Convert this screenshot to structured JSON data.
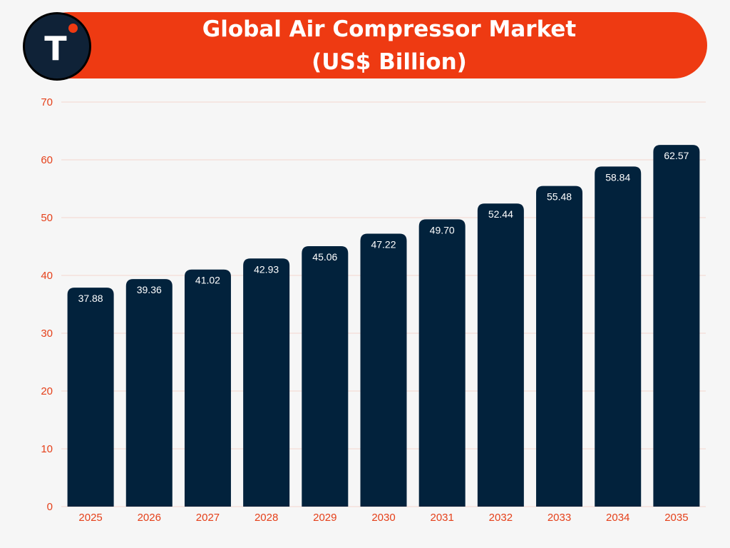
{
  "header": {
    "title_line1": "Global Air Compressor Market",
    "title_line2": "(US$ Billion)",
    "logo_letter": "T"
  },
  "colors": {
    "accent": "#ee3a12",
    "bar": "#02223c",
    "axis_text": "#e5401a",
    "grid": "#f4d6cf"
  },
  "chart_data": {
    "type": "bar",
    "title": "Global Air Compressor Market (US$ Billion)",
    "categories": [
      "2025",
      "2026",
      "2027",
      "2028",
      "2029",
      "2030",
      "2031",
      "2032",
      "2033",
      "2034",
      "2035"
    ],
    "values": [
      37.88,
      39.36,
      41.02,
      42.93,
      45.06,
      47.22,
      49.7,
      52.44,
      55.48,
      58.84,
      62.57
    ],
    "value_labels": [
      "37.88",
      "39.36",
      "41.02",
      "42.93",
      "45.06",
      "47.22",
      "49.70",
      "52.44",
      "55.48",
      "58.84",
      "62.57"
    ],
    "ylim": [
      0,
      70
    ],
    "yticks": [
      0,
      10,
      20,
      30,
      40,
      50,
      60,
      70
    ],
    "xlabel": "",
    "ylabel": "",
    "grid": true,
    "legend": "none"
  }
}
